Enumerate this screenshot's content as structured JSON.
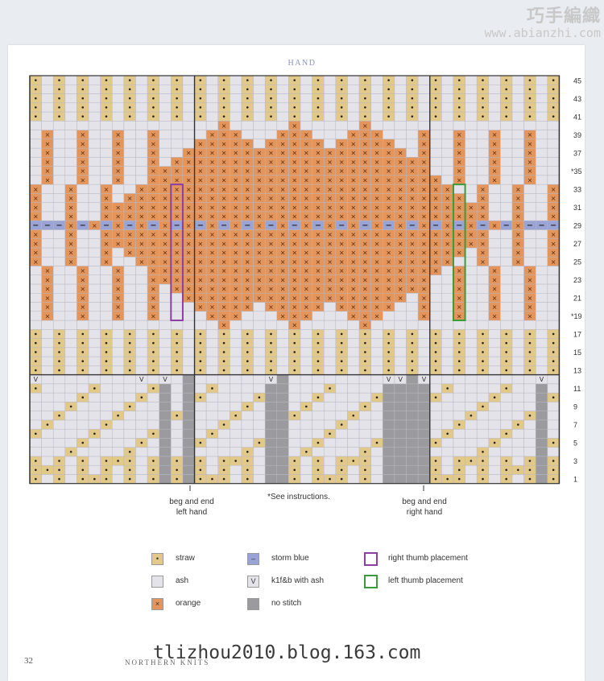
{
  "watermark_top": {
    "brand": "巧手編織",
    "url": "www.abianzhi.com"
  },
  "chart": {
    "title": "HAND",
    "row_labels": [
      "45",
      "43",
      "41",
      "39",
      "37",
      "*35",
      "33",
      "31",
      "29",
      "27",
      "25",
      "23",
      "21",
      "*19",
      "17",
      "15",
      "13",
      "11",
      "9",
      "7",
      "5",
      "3",
      "1"
    ],
    "colors": {
      "straw": "#e2c98a",
      "ash": "#e4e3ea",
      "orange": "#e3955b",
      "storm_blue": "#9aa3d6",
      "no_stitch": "#9b9a9e",
      "right_thumb": "#8b3fa0",
      "left_thumb": "#3b9a3b"
    }
  },
  "annotations": {
    "left_hand": "beg and end\nleft hand",
    "see_instructions": "*See instructions.",
    "right_hand": "beg and end\nright hand"
  },
  "legend": {
    "straw": "straw",
    "ash": "ash",
    "orange": "orange",
    "storm_blue": "storm blue",
    "k1fb": "k1f&b with ash",
    "no_stitch": "no stitch",
    "right_thumb": "right thumb placement",
    "left_thumb": "left thumb placement",
    "symbols": {
      "straw": "•",
      "storm_blue": "–",
      "k1fb": "V",
      "orange": "×"
    }
  },
  "footer": {
    "page_number": "32",
    "book_title": "NORTHERN KNITS",
    "watermark": "tlizhou2010.blog.163.com"
  }
}
